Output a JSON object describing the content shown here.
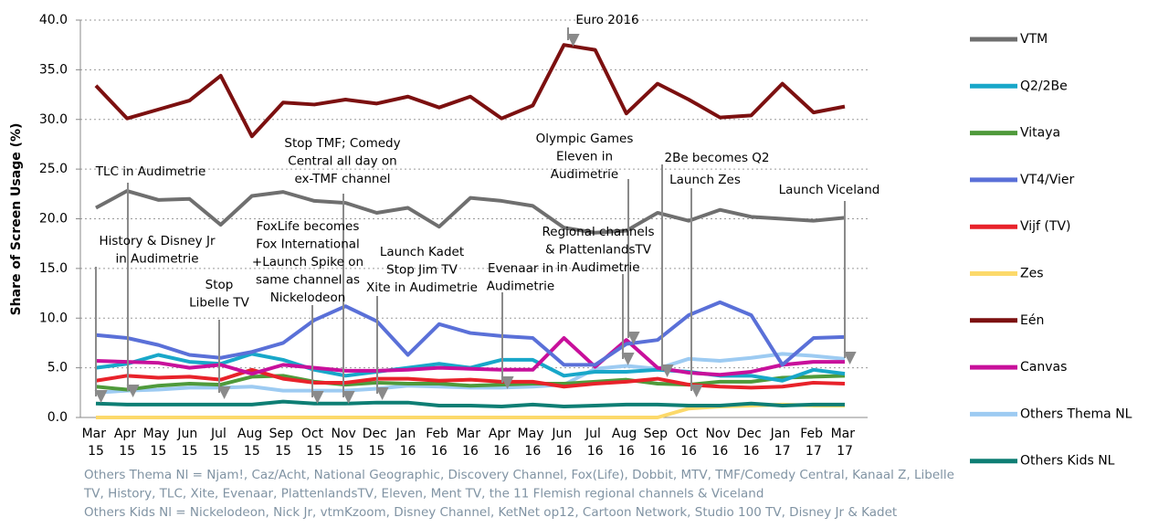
{
  "chart_data": {
    "type": "line",
    "y_label": "Share of Screen Usage (%)",
    "categories": [
      "Mar 15",
      "Apr 15",
      "May 15",
      "Jun 15",
      "Jul 15",
      "Aug 15",
      "Sep 15",
      "Oct 15",
      "Nov 15",
      "Dec 15",
      "Jan 16",
      "Feb 16",
      "Mar 16",
      "Apr 16",
      "May 16",
      "Jun 16",
      "Jul 16",
      "Aug 16",
      "Sep 16",
      "Oct 16",
      "Nov 16",
      "Dec 16",
      "Jan 17",
      "Feb 17",
      "Mar 17"
    ],
    "ylim": [
      0,
      40
    ],
    "yticks": [
      {
        "value": 0,
        "label": "0.0"
      },
      {
        "value": 5,
        "label": "5.0"
      },
      {
        "value": 10,
        "label": "10.0"
      },
      {
        "value": 15,
        "label": "15.0"
      },
      {
        "value": 20,
        "label": "20.0"
      },
      {
        "value": 25,
        "label": "25.0"
      },
      {
        "value": 30,
        "label": "30.0"
      },
      {
        "value": 35,
        "label": "35.0"
      },
      {
        "value": 40,
        "label": "40.0"
      }
    ],
    "grid": true,
    "legend": "right",
    "series": [
      {
        "name": "VTM",
        "color": "#6f6f6f",
        "values": [
          21.1,
          22.8,
          21.9,
          22.0,
          19.4,
          22.3,
          22.7,
          21.8,
          21.6,
          20.6,
          21.1,
          19.2,
          22.1,
          21.8,
          21.3,
          19.1,
          18.6,
          18.8,
          20.6,
          19.8,
          20.9,
          20.2,
          20.0,
          19.8,
          20.1
        ]
      },
      {
        "name": "Q2/2Be",
        "color": "#18a7c9",
        "values": [
          5.0,
          5.4,
          6.3,
          5.6,
          5.4,
          6.4,
          5.8,
          4.8,
          4.2,
          4.6,
          5.0,
          5.4,
          5.0,
          5.8,
          5.8,
          4.2,
          4.6,
          4.6,
          4.8,
          4.6,
          4.2,
          4.2,
          3.7,
          4.8,
          4.4
        ]
      },
      {
        "name": "Vitaya",
        "color": "#4f9a3b",
        "values": [
          3.1,
          2.8,
          3.2,
          3.4,
          3.3,
          4.1,
          4.2,
          3.6,
          3.3,
          3.5,
          3.4,
          3.4,
          3.2,
          3.3,
          3.4,
          3.4,
          3.6,
          3.8,
          3.4,
          3.3,
          3.6,
          3.6,
          4.0,
          4.1,
          4.2
        ]
      },
      {
        "name": "VT4/Vier",
        "color": "#5a70d8",
        "values": [
          8.3,
          8.0,
          7.3,
          6.3,
          6.0,
          6.6,
          7.5,
          9.8,
          11.2,
          9.7,
          6.3,
          9.4,
          8.5,
          8.2,
          8.0,
          5.3,
          5.3,
          7.4,
          7.8,
          10.3,
          11.6,
          10.3,
          5.3,
          8.0,
          8.1
        ]
      },
      {
        "name": "Vijf (TV)",
        "color": "#e8222a",
        "values": [
          3.7,
          4.2,
          4.0,
          4.1,
          3.8,
          4.8,
          3.9,
          3.5,
          3.5,
          3.9,
          3.9,
          3.7,
          3.8,
          3.6,
          3.6,
          3.1,
          3.4,
          3.6,
          3.9,
          3.3,
          3.1,
          3.0,
          3.1,
          3.5,
          3.4
        ]
      },
      {
        "name": "Zes",
        "color": "#fcd96b",
        "values": [
          0,
          0,
          0,
          0,
          0,
          0,
          0,
          0,
          0,
          0,
          0,
          0,
          0,
          0,
          0,
          0,
          0,
          0,
          0,
          0.9,
          1.1,
          1.2,
          1.3,
          1.2,
          1.2
        ]
      },
      {
        "name": "Eén",
        "color": "#7c1010",
        "values": [
          33.4,
          30.1,
          31.0,
          31.9,
          34.4,
          28.3,
          31.7,
          31.5,
          32.0,
          31.6,
          32.3,
          31.2,
          32.3,
          30.1,
          31.4,
          37.5,
          37.0,
          30.6,
          33.6,
          32.0,
          30.2,
          30.4,
          33.6,
          30.7,
          31.3
        ]
      },
      {
        "name": "Canvas",
        "color": "#c8109b",
        "values": [
          5.7,
          5.6,
          5.5,
          5.0,
          5.3,
          4.4,
          5.3,
          5.0,
          4.7,
          4.7,
          4.8,
          5.0,
          4.9,
          4.8,
          4.8,
          8.0,
          5.1,
          7.8,
          5.0,
          4.5,
          4.3,
          4.6,
          5.3,
          5.6,
          5.6
        ]
      },
      {
        "name": "Others Thema NL",
        "color": "#9dcbf2",
        "values": [
          2.5,
          2.7,
          2.8,
          3.0,
          3.0,
          3.1,
          2.7,
          2.7,
          2.7,
          2.9,
          3.2,
          3.1,
          3.0,
          3.0,
          3.1,
          3.3,
          4.9,
          5.2,
          4.9,
          5.9,
          5.7,
          6.0,
          6.4,
          6.2,
          5.9
        ]
      },
      {
        "name": "Others Kids NL",
        "color": "#0e7e74",
        "values": [
          1.4,
          1.3,
          1.3,
          1.3,
          1.3,
          1.3,
          1.6,
          1.4,
          1.4,
          1.5,
          1.5,
          1.2,
          1.2,
          1.1,
          1.3,
          1.1,
          1.2,
          1.3,
          1.3,
          1.2,
          1.2,
          1.4,
          1.2,
          1.3,
          1.3
        ]
      }
    ],
    "annotations": [
      [
        "Euro 2016"
      ],
      [
        "TLC in Audimetrie"
      ],
      [
        "History & Disney Jr",
        "in Audimetrie"
      ],
      [
        "Stop",
        "Libelle TV"
      ],
      [
        "Stop TMF; Comedy",
        "Central all day on",
        "ex-TMF channel"
      ],
      [
        "FoxLife becomes",
        "Fox International",
        "+Launch Spike on",
        "same channel as",
        "Nickelodeon"
      ],
      [
        "Launch Kadet",
        "Stop Jim TV",
        "Xite in Audimetrie"
      ],
      [
        "Evenaar in",
        "Audimetrie"
      ],
      [
        "Olympic Games",
        "Eleven in",
        "Audimetrie"
      ],
      [
        "Regional channels",
        "& PlattenlandsTV",
        "in Audimetrie"
      ],
      [
        "2Be becomes Q2"
      ],
      [
        "Launch Zes"
      ],
      [
        "Launch Viceland"
      ]
    ],
    "notes": [
      "Others Thema Nl = Njam!, Caz/Acht, National Geographic, Discovery Channel, Fox(Life), Dobbit, MTV, TMF/Comedy Central, Kanaal Z, Libelle",
      "TV, History, TLC, Xite, Evenaar, PlattenlandsTV, Eleven, Ment TV, the 11 Flemish regional channels & Viceland",
      "Others Kids Nl = Nickelodeon, Nick Jr, vtmKzoom, Disney Channel, KetNet op12, Cartoon Network, Studio 100 TV, Disney Jr & Kadet"
    ]
  }
}
